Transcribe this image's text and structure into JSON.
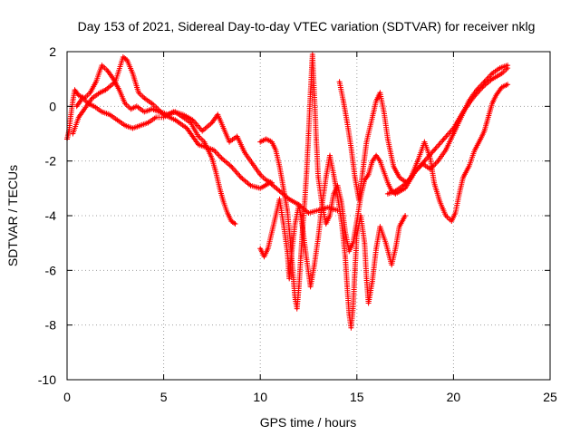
{
  "chart_data": {
    "type": "scatter",
    "title": "Day 153 of 2021, Sidereal Day-to-day VTEC variation (SDTVAR) for receiver nklg",
    "xlabel": "GPS time / hours",
    "ylabel": "SDTVAR / TECUs",
    "xlim": [
      0,
      25
    ],
    "ylim": [
      -10,
      2
    ],
    "x_ticks": [
      0,
      5,
      10,
      15,
      20,
      25
    ],
    "y_ticks": [
      -10,
      -8,
      -6,
      -4,
      -2,
      0,
      2
    ],
    "x_tick_labels": [
      "0",
      "5",
      "10",
      "15",
      "20",
      "25"
    ],
    "y_tick_labels": [
      "-10",
      "-8",
      "-6",
      "-4",
      "-2",
      "0",
      "2"
    ],
    "grid": true,
    "grid_style": "dotted",
    "marker": "+",
    "series_color": "#ff0000",
    "series": [
      {
        "points": [
          [
            0,
            -1.2
          ],
          [
            0.1,
            -0.9
          ],
          [
            0.2,
            -0.3
          ],
          [
            0.3,
            0.2
          ],
          [
            0.4,
            0.6
          ],
          [
            0.6,
            0.4
          ],
          [
            0.9,
            0.3
          ],
          [
            1.2,
            0.5
          ],
          [
            1.5,
            0.9
          ],
          [
            1.8,
            1.5
          ],
          [
            2.1,
            1.3
          ],
          [
            2.4,
            1.0
          ],
          [
            2.7,
            0.6
          ],
          [
            3.0,
            0.1
          ],
          [
            3.3,
            -0.1
          ],
          [
            3.6,
            0.0
          ],
          [
            4.0,
            -0.2
          ],
          [
            4.4,
            -0.1
          ],
          [
            4.8,
            -0.2
          ],
          [
            5.2,
            -0.3
          ],
          [
            5.6,
            -0.2
          ],
          [
            6.0,
            -0.4
          ],
          [
            6.4,
            -0.6
          ],
          [
            6.8,
            -1.1
          ],
          [
            7.1,
            -1.3
          ],
          [
            7.3,
            -1.6
          ],
          [
            7.5,
            -1.9
          ],
          [
            7.7,
            -2.4
          ],
          [
            7.9,
            -3.0
          ],
          [
            8.1,
            -3.5
          ],
          [
            8.3,
            -3.9
          ],
          [
            8.5,
            -4.2
          ],
          [
            8.7,
            -4.3
          ]
        ]
      },
      {
        "points": [
          [
            0.3,
            -1.0
          ],
          [
            0.6,
            -0.4
          ],
          [
            0.9,
            -0.1
          ],
          [
            1.3,
            0.3
          ],
          [
            1.7,
            0.5
          ],
          [
            2.0,
            0.6
          ],
          [
            2.5,
            0.9
          ],
          [
            2.9,
            1.8
          ],
          [
            3.1,
            1.7
          ],
          [
            3.4,
            1.2
          ],
          [
            3.7,
            0.5
          ],
          [
            4.0,
            0.3
          ],
          [
            4.4,
            0.1
          ],
          [
            5.0,
            -0.3
          ],
          [
            5.6,
            -0.5
          ],
          [
            6.2,
            -0.8
          ],
          [
            6.5,
            -1.1
          ],
          [
            6.8,
            -1.4
          ],
          [
            7.2,
            -1.5
          ],
          [
            7.6,
            -1.6
          ],
          [
            8.0,
            -1.9
          ],
          [
            8.5,
            -2.2
          ],
          [
            9.0,
            -2.6
          ],
          [
            9.5,
            -2.9
          ],
          [
            10.0,
            -3.0
          ],
          [
            10.5,
            -2.8
          ],
          [
            11.0,
            -3.1
          ],
          [
            11.5,
            -3.4
          ],
          [
            12.0,
            -3.6
          ],
          [
            12.5,
            -3.9
          ],
          [
            13.0,
            -3.8
          ],
          [
            13.5,
            -3.7
          ],
          [
            14.0,
            -3.8
          ]
        ]
      },
      {
        "points": [
          [
            0.5,
            0.0
          ],
          [
            0.8,
            0.3
          ],
          [
            1.1,
            0.1
          ],
          [
            1.4,
            0.0
          ],
          [
            1.8,
            -0.2
          ],
          [
            2.2,
            -0.3
          ],
          [
            2.6,
            -0.5
          ],
          [
            3.0,
            -0.7
          ],
          [
            3.4,
            -0.8
          ],
          [
            3.8,
            -0.7
          ],
          [
            4.2,
            -0.6
          ],
          [
            4.6,
            -0.4
          ],
          [
            5.0,
            -0.4
          ],
          [
            5.5,
            -0.2
          ],
          [
            6.0,
            -0.3
          ],
          [
            6.5,
            -0.5
          ],
          [
            7.0,
            -0.9
          ],
          [
            7.5,
            -0.6
          ],
          [
            7.8,
            -0.3
          ],
          [
            8.1,
            -0.8
          ],
          [
            8.4,
            -1.3
          ],
          [
            8.8,
            -1.1
          ],
          [
            9.2,
            -1.7
          ],
          [
            9.6,
            -2.1
          ],
          [
            10.0,
            -2.5
          ],
          [
            10.3,
            -2.7
          ],
          [
            10.6,
            -2.8
          ]
        ]
      },
      {
        "points": [
          [
            10.0,
            -1.3
          ],
          [
            10.3,
            -1.2
          ],
          [
            10.6,
            -1.3
          ],
          [
            10.8,
            -1.6
          ],
          [
            11.0,
            -2.2
          ],
          [
            11.2,
            -3.0
          ],
          [
            11.4,
            -3.8
          ],
          [
            11.5,
            -4.5
          ],
          [
            11.6,
            -5.3
          ],
          [
            11.7,
            -6.2
          ],
          [
            11.8,
            -7.0
          ],
          [
            11.9,
            -7.4
          ],
          [
            12.0,
            -6.6
          ],
          [
            12.1,
            -5.5
          ],
          [
            12.2,
            -4.4
          ],
          [
            12.3,
            -3.5
          ],
          [
            12.4,
            -2.4
          ],
          [
            12.5,
            -1.0
          ],
          [
            12.6,
            0.5
          ],
          [
            12.7,
            1.9
          ],
          [
            12.8,
            0.4
          ],
          [
            12.9,
            -1.2
          ],
          [
            13.0,
            -2.6
          ],
          [
            13.2,
            -3.6
          ],
          [
            13.4,
            -4.3
          ],
          [
            13.6,
            -4.0
          ],
          [
            13.8,
            -3.2
          ],
          [
            14.0,
            -2.9
          ],
          [
            14.2,
            -3.5
          ],
          [
            14.4,
            -4.6
          ],
          [
            14.6,
            -5.3
          ],
          [
            14.8,
            -5.0
          ],
          [
            15.0,
            -4.2
          ],
          [
            15.2,
            -3.3
          ],
          [
            15.4,
            -2.7
          ],
          [
            15.6,
            -2.5
          ],
          [
            15.8,
            -2.0
          ],
          [
            16.0,
            -1.8
          ],
          [
            16.2,
            -2.0
          ],
          [
            16.4,
            -2.4
          ],
          [
            16.6,
            -2.8
          ],
          [
            16.8,
            -3.1
          ],
          [
            17.0,
            -3.2
          ],
          [
            17.5,
            -3.0
          ],
          [
            18.0,
            -2.4
          ],
          [
            18.5,
            -2.0
          ],
          [
            19.0,
            -1.6
          ],
          [
            19.5,
            -1.2
          ],
          [
            20.0,
            -0.8
          ],
          [
            20.5,
            -0.2
          ],
          [
            21.0,
            0.3
          ],
          [
            21.5,
            0.7
          ],
          [
            22.0,
            1.0
          ],
          [
            22.5,
            1.2
          ],
          [
            22.8,
            1.4
          ]
        ]
      },
      {
        "points": [
          [
            10.0,
            -5.2
          ],
          [
            10.2,
            -5.5
          ],
          [
            10.4,
            -5.2
          ],
          [
            10.6,
            -4.6
          ],
          [
            10.8,
            -4.0
          ],
          [
            11.0,
            -3.4
          ],
          [
            11.2,
            -4.3
          ],
          [
            11.4,
            -5.3
          ],
          [
            11.5,
            -6.3
          ],
          [
            11.6,
            -5.5
          ],
          [
            11.8,
            -4.3
          ],
          [
            12.0,
            -3.6
          ],
          [
            12.2,
            -4.5
          ],
          [
            12.4,
            -5.6
          ],
          [
            12.6,
            -6.6
          ],
          [
            12.8,
            -5.8
          ],
          [
            13.0,
            -4.8
          ],
          [
            13.2,
            -3.6
          ],
          [
            13.4,
            -2.6
          ],
          [
            13.6,
            -1.8
          ],
          [
            13.8,
            -2.5
          ],
          [
            14.0,
            -3.3
          ],
          [
            14.2,
            -4.2
          ],
          [
            14.4,
            -5.5
          ],
          [
            14.5,
            -6.6
          ],
          [
            14.6,
            -7.6
          ],
          [
            14.7,
            -8.1
          ],
          [
            14.8,
            -7.4
          ],
          [
            14.9,
            -6.0
          ],
          [
            15.0,
            -4.7
          ],
          [
            15.2,
            -4.0
          ],
          [
            15.4,
            -5.0
          ],
          [
            15.5,
            -6.3
          ],
          [
            15.6,
            -7.2
          ],
          [
            15.8,
            -6.4
          ],
          [
            16.0,
            -5.2
          ],
          [
            16.2,
            -4.4
          ],
          [
            16.5,
            -5.0
          ],
          [
            16.8,
            -5.8
          ],
          [
            17.0,
            -5.2
          ],
          [
            17.2,
            -4.4
          ],
          [
            17.5,
            -4.0
          ]
        ]
      },
      {
        "points": [
          [
            14.1,
            0.9
          ],
          [
            14.3,
            0.2
          ],
          [
            14.5,
            -0.6
          ],
          [
            14.7,
            -1.5
          ],
          [
            14.9,
            -2.6
          ],
          [
            15.1,
            -3.4
          ],
          [
            15.3,
            -2.4
          ],
          [
            15.5,
            -1.3
          ],
          [
            15.8,
            -0.4
          ],
          [
            16.0,
            0.2
          ],
          [
            16.2,
            0.5
          ],
          [
            16.4,
            -0.2
          ],
          [
            16.6,
            -1.2
          ],
          [
            16.9,
            -2.2
          ],
          [
            17.2,
            -2.6
          ],
          [
            17.6,
            -2.8
          ],
          [
            18.0,
            -2.4
          ],
          [
            18.4,
            -2.1
          ],
          [
            18.8,
            -2.3
          ],
          [
            19.2,
            -2.0
          ],
          [
            19.6,
            -1.6
          ],
          [
            20.0,
            -1.0
          ],
          [
            20.4,
            -0.4
          ],
          [
            20.8,
            0.2
          ],
          [
            21.2,
            0.6
          ],
          [
            21.6,
            0.9
          ],
          [
            22.0,
            1.2
          ],
          [
            22.4,
            1.4
          ],
          [
            22.8,
            1.5
          ]
        ]
      },
      {
        "points": [
          [
            16.6,
            -3.2
          ],
          [
            17.0,
            -3.1
          ],
          [
            17.4,
            -2.9
          ],
          [
            17.8,
            -2.6
          ],
          [
            18.2,
            -1.9
          ],
          [
            18.5,
            -1.3
          ],
          [
            18.8,
            -1.9
          ],
          [
            19.0,
            -2.8
          ],
          [
            19.3,
            -3.5
          ],
          [
            19.6,
            -4.0
          ],
          [
            19.9,
            -4.2
          ],
          [
            20.1,
            -3.9
          ],
          [
            20.3,
            -3.2
          ],
          [
            20.5,
            -2.6
          ],
          [
            20.8,
            -2.2
          ],
          [
            21.1,
            -1.6
          ],
          [
            21.4,
            -1.2
          ],
          [
            21.6,
            -0.9
          ],
          [
            21.8,
            -0.4
          ],
          [
            22.0,
            0.1
          ],
          [
            22.2,
            0.4
          ],
          [
            22.5,
            0.7
          ],
          [
            22.8,
            0.8
          ]
        ]
      }
    ]
  }
}
